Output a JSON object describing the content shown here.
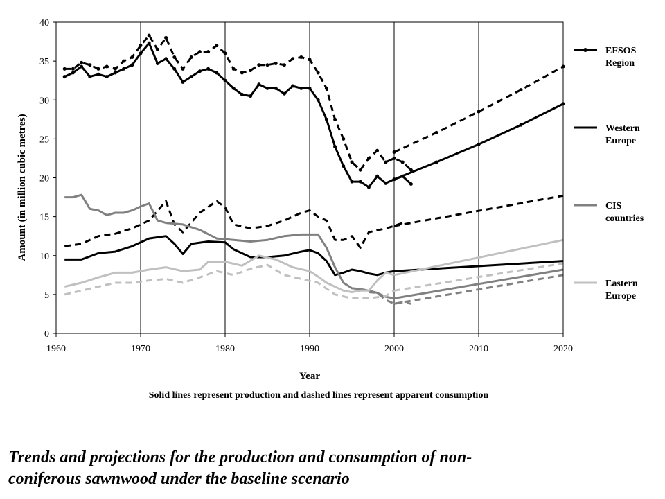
{
  "chart_data": {
    "type": "line",
    "title": "",
    "xlabel": "Year",
    "ylabel": "Amount (in million cubic metres)",
    "xlim": [
      1960,
      2020
    ],
    "ylim": [
      0,
      40
    ],
    "x_ticks": [
      1960,
      1970,
      1980,
      1990,
      2000,
      2010,
      2020
    ],
    "y_ticks": [
      0,
      5,
      10,
      15,
      20,
      25,
      30,
      35,
      40
    ],
    "grid": "vertical",
    "legend_placement": "right",
    "note": "Solid lines represent production and dashed lines represent apparent consumption",
    "legend": [
      {
        "label_lines": [
          "EFSOS",
          "Region"
        ],
        "color": "#000000",
        "marker": true
      },
      {
        "label_lines": [
          "Western",
          "Europe"
        ],
        "color": "#000000",
        "marker": false
      },
      {
        "label_lines": [
          "CIS",
          "countries"
        ],
        "color": "#808080",
        "marker": false
      },
      {
        "label_lines": [
          "Eastern",
          "Europe"
        ],
        "color": "#c0c0c0",
        "marker": false
      }
    ],
    "series": [
      {
        "region": "EFSOS Region",
        "measure": "production",
        "color": "#000000",
        "dashed": false,
        "marker": true,
        "points": [
          [
            1961,
            33
          ],
          [
            1962,
            33.5
          ],
          [
            1963,
            34.3
          ],
          [
            1964,
            33
          ],
          [
            1965,
            33.3
          ],
          [
            1966,
            33
          ],
          [
            1967,
            33.5
          ],
          [
            1968,
            34
          ],
          [
            1969,
            34.5
          ],
          [
            1970,
            36
          ],
          [
            1971,
            37.3
          ],
          [
            1972,
            34.7
          ],
          [
            1973,
            35.3
          ],
          [
            1974,
            34
          ],
          [
            1975,
            32.3
          ],
          [
            1976,
            33
          ],
          [
            1977,
            33.7
          ],
          [
            1978,
            34
          ],
          [
            1979,
            33.5
          ],
          [
            1980,
            32.5
          ],
          [
            1981,
            31.5
          ],
          [
            1982,
            30.7
          ],
          [
            1983,
            30.5
          ],
          [
            1984,
            32
          ],
          [
            1985,
            31.5
          ],
          [
            1986,
            31.5
          ],
          [
            1987,
            30.8
          ],
          [
            1988,
            31.8
          ],
          [
            1989,
            31.5
          ],
          [
            1990,
            31.5
          ],
          [
            1991,
            30
          ],
          [
            1992,
            27.5
          ],
          [
            1993,
            24
          ],
          [
            1994,
            21.5
          ],
          [
            1995,
            19.5
          ],
          [
            1996,
            19.5
          ],
          [
            1997,
            18.8
          ],
          [
            1998,
            20.2
          ],
          [
            1999,
            19.3
          ],
          [
            2000,
            19.8
          ],
          [
            2001,
            20.2
          ],
          [
            2002,
            19.2
          ]
        ]
      },
      {
        "region": "EFSOS Region",
        "measure": "apparent consumption",
        "color": "#000000",
        "dashed": true,
        "marker": true,
        "points": [
          [
            1961,
            34
          ],
          [
            1962,
            34
          ],
          [
            1963,
            34.8
          ],
          [
            1964,
            34.5
          ],
          [
            1965,
            34
          ],
          [
            1966,
            34.3
          ],
          [
            1967,
            34
          ],
          [
            1968,
            35
          ],
          [
            1969,
            35.5
          ],
          [
            1970,
            37
          ],
          [
            1971,
            38.3
          ],
          [
            1972,
            36.5
          ],
          [
            1973,
            38
          ],
          [
            1974,
            35.5
          ],
          [
            1975,
            34
          ],
          [
            1976,
            35.5
          ],
          [
            1977,
            36.2
          ],
          [
            1978,
            36.2
          ],
          [
            1979,
            37
          ],
          [
            1980,
            36
          ],
          [
            1981,
            34
          ],
          [
            1982,
            33.5
          ],
          [
            1983,
            33.8
          ],
          [
            1984,
            34.5
          ],
          [
            1985,
            34.5
          ],
          [
            1986,
            34.7
          ],
          [
            1987,
            34.5
          ],
          [
            1988,
            35.3
          ],
          [
            1989,
            35.5
          ],
          [
            1990,
            35.2
          ],
          [
            1991,
            33.5
          ],
          [
            1992,
            31.5
          ],
          [
            1993,
            27.5
          ],
          [
            1994,
            25
          ],
          [
            1995,
            22
          ],
          [
            1996,
            21
          ],
          [
            1997,
            22.5
          ],
          [
            1998,
            23.5
          ],
          [
            1999,
            22
          ],
          [
            2000,
            22.5
          ],
          [
            2001,
            22
          ],
          [
            2002,
            21
          ]
        ]
      },
      {
        "region": "EFSOS Region",
        "measure": "production projection",
        "color": "#000000",
        "dashed": false,
        "marker": true,
        "points": [
          [
            2000,
            19.8
          ],
          [
            2005,
            22
          ],
          [
            2010,
            24.3
          ],
          [
            2015,
            26.8
          ],
          [
            2020,
            29.5
          ]
        ]
      },
      {
        "region": "EFSOS Region",
        "measure": "apparent consumption projection",
        "color": "#000000",
        "dashed": true,
        "marker": true,
        "points": [
          [
            2000,
            23.3
          ],
          [
            2005,
            25.8
          ],
          [
            2010,
            28.5
          ],
          [
            2015,
            31.3
          ],
          [
            2020,
            34.3
          ]
        ]
      },
      {
        "region": "Western Europe",
        "measure": "production",
        "color": "#000000",
        "dashed": false,
        "marker": false,
        "points": [
          [
            1961,
            9.5
          ],
          [
            1963,
            9.5
          ],
          [
            1965,
            10.3
          ],
          [
            1967,
            10.5
          ],
          [
            1969,
            11.2
          ],
          [
            1971,
            12.2
          ],
          [
            1973,
            12.5
          ],
          [
            1974,
            11.5
          ],
          [
            1975,
            10.2
          ],
          [
            1976,
            11.5
          ],
          [
            1978,
            11.8
          ],
          [
            1980,
            11.7
          ],
          [
            1981,
            10.8
          ],
          [
            1983,
            9.8
          ],
          [
            1985,
            9.8
          ],
          [
            1987,
            10
          ],
          [
            1989,
            10.5
          ],
          [
            1990,
            10.7
          ],
          [
            1991,
            10.3
          ],
          [
            1992,
            9.3
          ],
          [
            1993,
            7.5
          ],
          [
            1994,
            7.8
          ],
          [
            1995,
            8.2
          ],
          [
            1996,
            8
          ],
          [
            1997,
            7.7
          ],
          [
            1998,
            7.5
          ],
          [
            1999,
            7.8
          ],
          [
            2000,
            8
          ]
        ]
      },
      {
        "region": "Western Europe",
        "measure": "apparent consumption",
        "color": "#000000",
        "dashed": true,
        "marker": false,
        "points": [
          [
            1961,
            11.2
          ],
          [
            1963,
            11.5
          ],
          [
            1965,
            12.5
          ],
          [
            1967,
            12.8
          ],
          [
            1969,
            13.5
          ],
          [
            1971,
            14.5
          ],
          [
            1973,
            17
          ],
          [
            1974,
            14
          ],
          [
            1975,
            13
          ],
          [
            1977,
            15.5
          ],
          [
            1979,
            17
          ],
          [
            1980,
            16.2
          ],
          [
            1981,
            14
          ],
          [
            1983,
            13.5
          ],
          [
            1985,
            13.8
          ],
          [
            1987,
            14.5
          ],
          [
            1989,
            15.5
          ],
          [
            1990,
            15.8
          ],
          [
            1991,
            15
          ],
          [
            1992,
            14.5
          ],
          [
            1993,
            12
          ],
          [
            1994,
            12
          ],
          [
            1995,
            12.5
          ],
          [
            1996,
            11
          ],
          [
            1997,
            13
          ],
          [
            1999,
            13.5
          ],
          [
            2000,
            13.8
          ],
          [
            2001,
            14.2
          ]
        ]
      },
      {
        "region": "Western Europe",
        "measure": "production projection",
        "color": "#000000",
        "dashed": false,
        "marker": false,
        "points": [
          [
            2000,
            8
          ],
          [
            2020,
            9.3
          ]
        ]
      },
      {
        "region": "Western Europe",
        "measure": "apparent consumption projection",
        "color": "#000000",
        "dashed": true,
        "marker": false,
        "points": [
          [
            2000,
            13.8
          ],
          [
            2020,
            17.7
          ]
        ]
      },
      {
        "region": "CIS countries",
        "measure": "production",
        "color": "#808080",
        "dashed": false,
        "marker": false,
        "points": [
          [
            1961,
            17.5
          ],
          [
            1962,
            17.5
          ],
          [
            1963,
            17.8
          ],
          [
            1964,
            16
          ],
          [
            1965,
            15.8
          ],
          [
            1966,
            15.2
          ],
          [
            1967,
            15.5
          ],
          [
            1968,
            15.5
          ],
          [
            1969,
            15.8
          ],
          [
            1970,
            16.3
          ],
          [
            1971,
            16.7
          ],
          [
            1972,
            14.5
          ],
          [
            1973,
            14.2
          ],
          [
            1975,
            14
          ],
          [
            1977,
            13.3
          ],
          [
            1979,
            12.2
          ],
          [
            1981,
            12
          ],
          [
            1983,
            11.8
          ],
          [
            1985,
            12
          ],
          [
            1987,
            12.5
          ],
          [
            1989,
            12.7
          ],
          [
            1990,
            12.7
          ],
          [
            1991,
            12.7
          ],
          [
            1992,
            11
          ],
          [
            1993,
            8.5
          ],
          [
            1994,
            6.5
          ],
          [
            1995,
            5.8
          ],
          [
            1996,
            5.7
          ],
          [
            1997,
            5.5
          ],
          [
            1998,
            5.2
          ],
          [
            1999,
            4.7
          ],
          [
            2000,
            4.5
          ]
        ]
      },
      {
        "region": "CIS countries",
        "measure": "apparent consumption",
        "color": "#808080",
        "dashed": true,
        "marker": false,
        "points": [
          [
            1997,
            5.3
          ],
          [
            1998,
            5.2
          ],
          [
            1999,
            4.3
          ],
          [
            2000,
            3.8
          ],
          [
            2001,
            4
          ],
          [
            2002,
            3.8
          ]
        ]
      },
      {
        "region": "CIS countries",
        "measure": "production projection",
        "color": "#808080",
        "dashed": false,
        "marker": false,
        "points": [
          [
            2000,
            4.5
          ],
          [
            2020,
            8.2
          ]
        ]
      },
      {
        "region": "CIS countries",
        "measure": "apparent consumption projection",
        "color": "#808080",
        "dashed": true,
        "marker": false,
        "points": [
          [
            2000,
            3.8
          ],
          [
            2020,
            7.5
          ]
        ]
      },
      {
        "region": "Eastern Europe",
        "measure": "production",
        "color": "#c0c0c0",
        "dashed": false,
        "marker": false,
        "points": [
          [
            1961,
            6
          ],
          [
            1963,
            6.5
          ],
          [
            1965,
            7.2
          ],
          [
            1967,
            7.8
          ],
          [
            1969,
            7.8
          ],
          [
            1971,
            8.2
          ],
          [
            1973,
            8.5
          ],
          [
            1975,
            8
          ],
          [
            1977,
            8.2
          ],
          [
            1978,
            9.2
          ],
          [
            1980,
            9.2
          ],
          [
            1982,
            8.7
          ],
          [
            1984,
            10
          ],
          [
            1986,
            9.5
          ],
          [
            1988,
            8.5
          ],
          [
            1990,
            8
          ],
          [
            1991,
            7.3
          ],
          [
            1992,
            6.5
          ],
          [
            1993,
            6
          ],
          [
            1994,
            5.5
          ],
          [
            1995,
            5.3
          ],
          [
            1996,
            5.5
          ],
          [
            1997,
            5.5
          ],
          [
            1998,
            6.8
          ],
          [
            1999,
            7.8
          ],
          [
            2000,
            7.5
          ]
        ]
      },
      {
        "region": "Eastern Europe",
        "measure": "apparent consumption",
        "color": "#c0c0c0",
        "dashed": true,
        "marker": false,
        "points": [
          [
            1961,
            5
          ],
          [
            1963,
            5.5
          ],
          [
            1965,
            6
          ],
          [
            1967,
            6.5
          ],
          [
            1969,
            6.5
          ],
          [
            1971,
            6.8
          ],
          [
            1973,
            7
          ],
          [
            1975,
            6.5
          ],
          [
            1977,
            7.2
          ],
          [
            1979,
            8
          ],
          [
            1981,
            7.5
          ],
          [
            1983,
            8.3
          ],
          [
            1985,
            8.8
          ],
          [
            1987,
            7.5
          ],
          [
            1989,
            7
          ],
          [
            1991,
            6.5
          ],
          [
            1993,
            5
          ],
          [
            1995,
            4.5
          ],
          [
            1997,
            4.5
          ],
          [
            1999,
            4.8
          ],
          [
            2000,
            5.5
          ]
        ]
      },
      {
        "region": "Eastern Europe",
        "measure": "production projection",
        "color": "#c0c0c0",
        "dashed": false,
        "marker": false,
        "points": [
          [
            2000,
            7.5
          ],
          [
            2020,
            12
          ]
        ]
      },
      {
        "region": "Eastern Europe",
        "measure": "apparent consumption projection",
        "color": "#c0c0c0",
        "dashed": true,
        "marker": false,
        "points": [
          [
            2000,
            5.5
          ],
          [
            2020,
            9
          ]
        ]
      }
    ]
  },
  "caption": {
    "line1": "Trends and projections for the production and consumption of non-",
    "line2": "coniferous sawnwood under the baseline scenario"
  }
}
